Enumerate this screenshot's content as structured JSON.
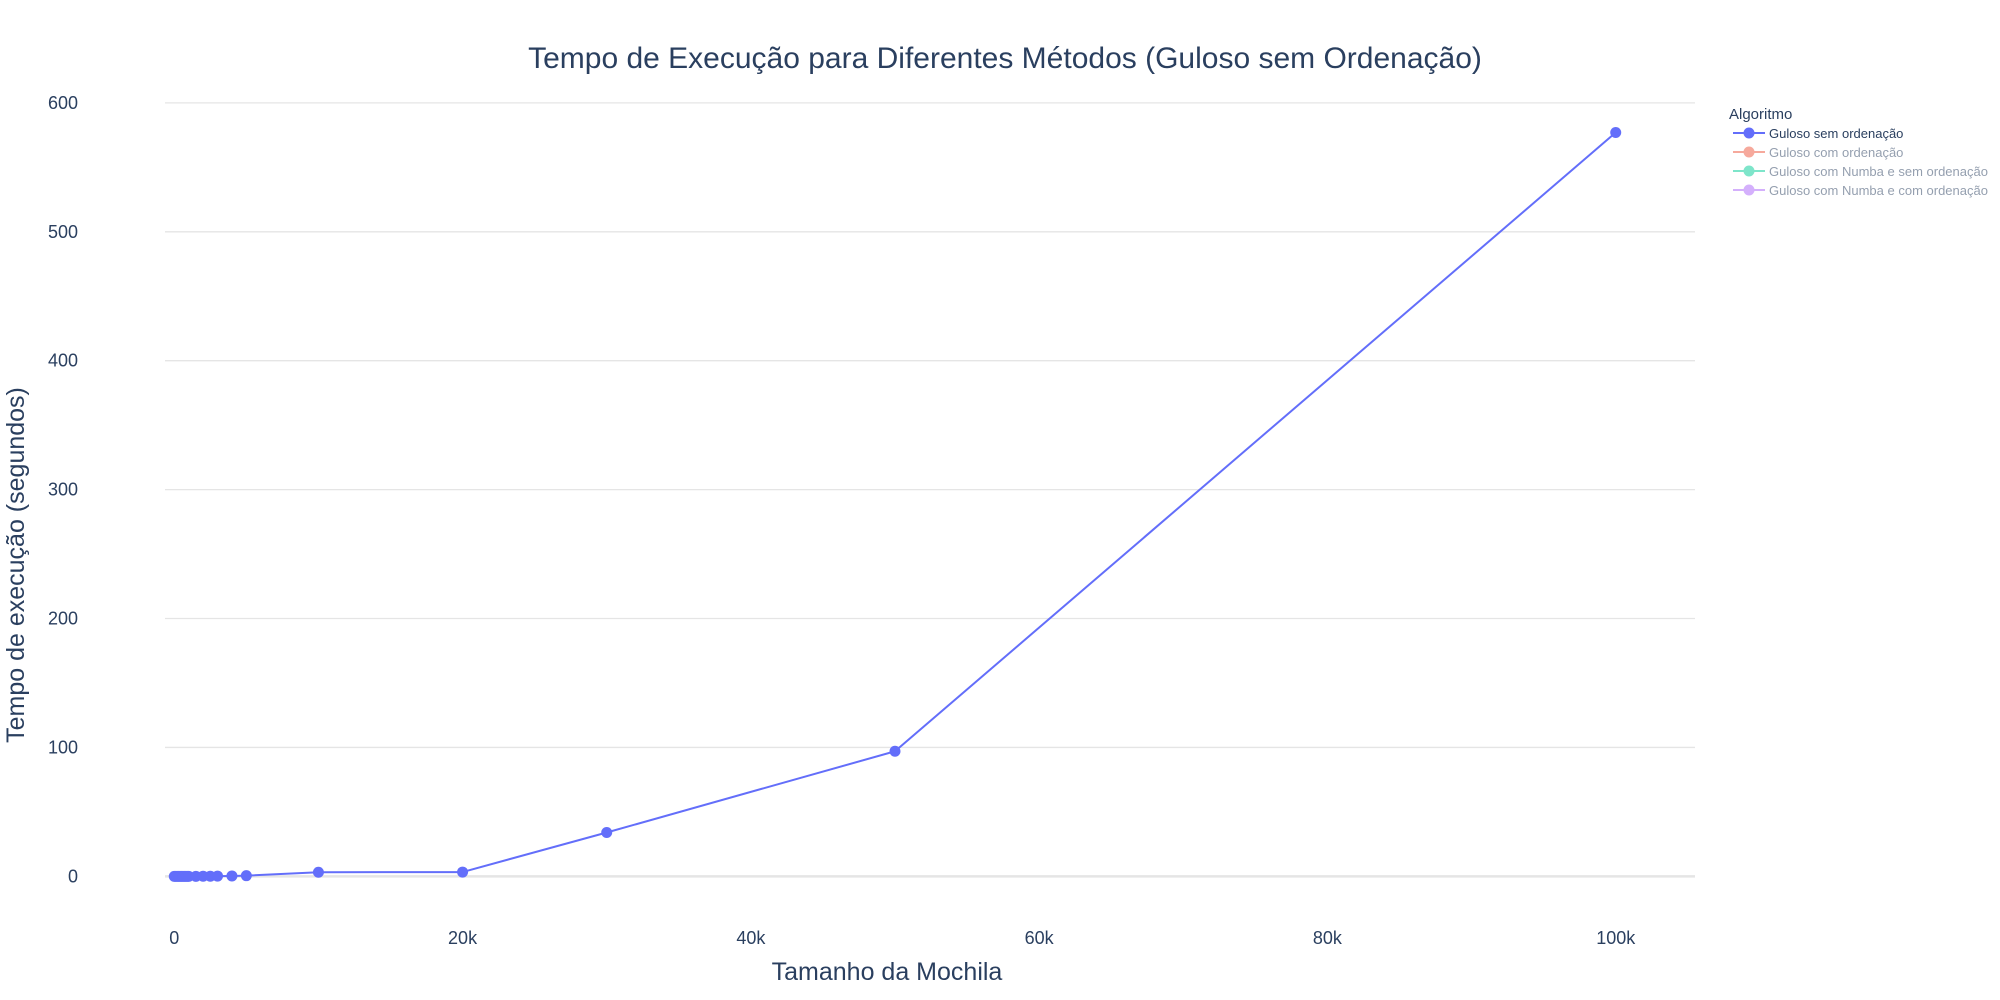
{
  "chart_data": {
    "type": "line",
    "title": "Tempo de Execução para Diferentes Métodos (Guloso sem Ordenação)",
    "xlabel": "Tamanho da Mochila",
    "ylabel": "Tempo de execução (segundos)",
    "xlim": [
      -5500,
      105500
    ],
    "ylim": [
      -30,
      610
    ],
    "x_ticks": [
      0,
      20000,
      40000,
      60000,
      80000,
      100000
    ],
    "x_tick_labels": [
      "0",
      "20k",
      "40k",
      "60k",
      "80k",
      "100k"
    ],
    "y_ticks": [
      0,
      100,
      200,
      300,
      400,
      500,
      600
    ],
    "y_tick_labels": [
      "0",
      "100",
      "200",
      "300",
      "400",
      "500",
      "600"
    ],
    "grid": "horizontal",
    "legend": {
      "title": "Algoritmo",
      "placement": "top-right, outside plot"
    },
    "series": [
      {
        "name": "Guloso sem ordenação",
        "color": "#636efa",
        "visible": true,
        "x": [
          0,
          100,
          200,
          300,
          400,
          500,
          600,
          700,
          800,
          900,
          1000,
          1500,
          2000,
          2500,
          3000,
          4000,
          5000,
          10000,
          20000,
          30000,
          50000,
          100000
        ],
        "y": [
          0.0,
          0.0,
          0.0,
          0.0,
          0.0,
          0.0,
          0.0,
          0.0,
          0.0,
          0.0,
          0.0,
          0.0,
          0.1,
          0.1,
          0.2,
          0.3,
          0.5,
          3.2,
          3.3,
          34.0,
          97.0,
          577.0
        ]
      },
      {
        "name": "Guloso com ordenação",
        "color": "#ef553b",
        "visible": false,
        "x": [],
        "y": []
      },
      {
        "name": "Guloso com Numba e sem ordenação",
        "color": "#00cc96",
        "visible": false,
        "x": [],
        "y": []
      },
      {
        "name": "Guloso com Numba e com ordenação",
        "color": "#ab63fa",
        "visible": false,
        "x": [],
        "y": []
      }
    ]
  }
}
